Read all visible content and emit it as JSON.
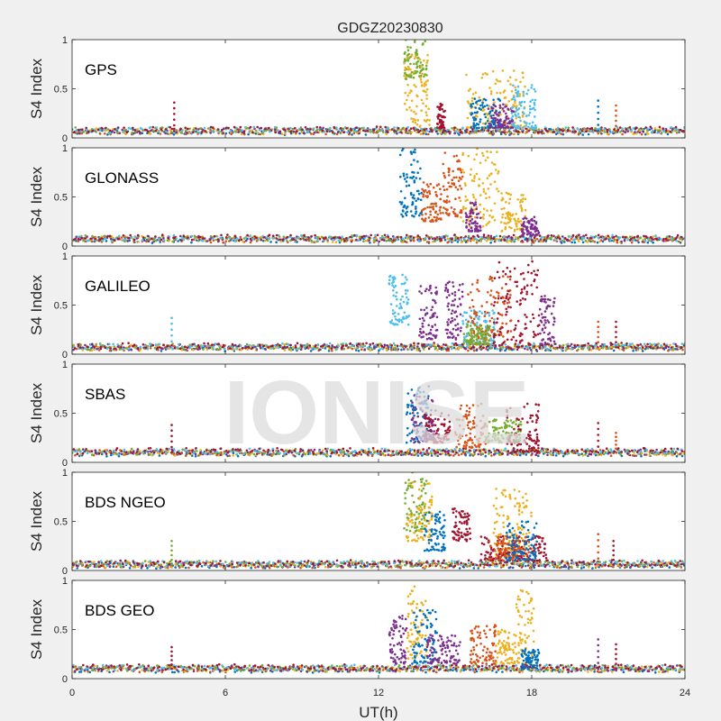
{
  "chart_data": {
    "type": "scatter",
    "title": "GDGZ20230830",
    "xlabel": "UT(h)",
    "ylabel": "S4 Index",
    "xlim": [
      0,
      24
    ],
    "ylim": [
      0,
      1
    ],
    "xticks": [
      "0",
      "6",
      "12",
      "18",
      "24"
    ],
    "yticks": [
      "0",
      "0.5",
      "1"
    ],
    "grid": false,
    "legend": "none",
    "watermark": "IONISE",
    "colors": [
      "#0072BD",
      "#D95319",
      "#EDB120",
      "#7E2F8E",
      "#77AC30",
      "#4DBEEE",
      "#A2142F"
    ],
    "panels": [
      {
        "label": "GPS",
        "baseline": 0.07,
        "spikes": [
          {
            "x": 4.0,
            "y": 0.36,
            "color": "#A2142F"
          },
          {
            "x": 20.6,
            "y": 0.38,
            "color": "#0072BD"
          },
          {
            "x": 21.3,
            "y": 0.33,
            "color": "#D95319"
          }
        ],
        "events": [
          {
            "xmin": 13.0,
            "xmax": 13.9,
            "ymin": 0.6,
            "ymax": 1.0,
            "color": "#77AC30"
          },
          {
            "xmin": 13.0,
            "xmax": 14.0,
            "ymin": 0.1,
            "ymax": 0.85,
            "color": "#EDB120"
          },
          {
            "xmin": 14.3,
            "xmax": 14.6,
            "ymin": 0.1,
            "ymax": 0.35,
            "color": "#A2142F"
          },
          {
            "xmin": 15.4,
            "xmax": 17.8,
            "ymin": 0.1,
            "ymax": 0.7,
            "color": "#EDB120"
          },
          {
            "xmin": 15.6,
            "xmax": 16.8,
            "ymin": 0.1,
            "ymax": 0.4,
            "color": "#0072BD"
          },
          {
            "xmin": 16.3,
            "xmax": 17.3,
            "ymin": 0.1,
            "ymax": 0.35,
            "color": "#7E2F8E"
          },
          {
            "xmin": 17.2,
            "xmax": 18.2,
            "ymin": 0.1,
            "ymax": 0.55,
            "color": "#4DBEEE"
          }
        ]
      },
      {
        "label": "GLONASS",
        "baseline": 0.07,
        "spikes": [],
        "events": [
          {
            "xmin": 12.8,
            "xmax": 13.7,
            "ymin": 0.3,
            "ymax": 1.0,
            "color": "#0072BD"
          },
          {
            "xmin": 13.7,
            "xmax": 14.5,
            "ymin": 0.25,
            "ymax": 0.65,
            "color": "#D95319"
          },
          {
            "xmin": 14.5,
            "xmax": 15.3,
            "ymin": 0.3,
            "ymax": 0.95,
            "color": "#D95319"
          },
          {
            "xmin": 15.2,
            "xmax": 16.7,
            "ymin": 0.2,
            "ymax": 1.0,
            "color": "#EDB120"
          },
          {
            "xmin": 15.4,
            "xmax": 16.0,
            "ymin": 0.15,
            "ymax": 0.45,
            "color": "#7E2F8E"
          },
          {
            "xmin": 16.8,
            "xmax": 17.8,
            "ymin": 0.15,
            "ymax": 0.55,
            "color": "#EDB120"
          },
          {
            "xmin": 17.6,
            "xmax": 18.3,
            "ymin": 0.1,
            "ymax": 0.3,
            "color": "#7E2F8E"
          }
        ]
      },
      {
        "label": "GALILEO",
        "baseline": 0.07,
        "spikes": [
          {
            "x": 3.9,
            "y": 0.37,
            "color": "#4DBEEE"
          },
          {
            "x": 20.6,
            "y": 0.33,
            "color": "#D95319"
          },
          {
            "x": 21.3,
            "y": 0.33,
            "color": "#A2142F"
          }
        ],
        "events": [
          {
            "xmin": 12.4,
            "xmax": 13.2,
            "ymin": 0.3,
            "ymax": 0.82,
            "color": "#4DBEEE"
          },
          {
            "xmin": 13.6,
            "xmax": 14.3,
            "ymin": 0.15,
            "ymax": 0.7,
            "color": "#7E2F8E"
          },
          {
            "xmin": 14.6,
            "xmax": 15.3,
            "ymin": 0.15,
            "ymax": 0.75,
            "color": "#7E2F8E"
          },
          {
            "xmin": 15.3,
            "xmax": 16.6,
            "ymin": 0.1,
            "ymax": 0.45,
            "color": "#4DBEEE"
          },
          {
            "xmin": 15.5,
            "xmax": 17.2,
            "ymin": 0.1,
            "ymax": 0.8,
            "color": "#D95319"
          },
          {
            "xmin": 15.3,
            "xmax": 16.4,
            "ymin": 0.1,
            "ymax": 0.3,
            "color": "#77AC30"
          },
          {
            "xmin": 16.5,
            "xmax": 18.3,
            "ymin": 0.1,
            "ymax": 0.95,
            "color": "#A2142F"
          },
          {
            "xmin": 18.3,
            "xmax": 18.9,
            "ymin": 0.1,
            "ymax": 0.6,
            "color": "#7E2F8E"
          }
        ]
      },
      {
        "label": "SBAS",
        "baseline": 0.1,
        "spikes": [
          {
            "x": 3.9,
            "y": 0.38,
            "color": "#A2142F"
          },
          {
            "x": 20.6,
            "y": 0.4,
            "color": "#A2142F"
          },
          {
            "x": 21.3,
            "y": 0.3,
            "color": "#D95319"
          }
        ],
        "events": [
          {
            "xmin": 13.1,
            "xmax": 14.0,
            "ymin": 0.2,
            "ymax": 0.8,
            "color": "#0072BD"
          },
          {
            "xmin": 13.3,
            "xmax": 14.4,
            "ymin": 0.2,
            "ymax": 0.7,
            "color": "#7E2F8E"
          },
          {
            "xmin": 13.8,
            "xmax": 14.8,
            "ymin": 0.2,
            "ymax": 0.5,
            "color": "#A2142F"
          },
          {
            "xmin": 15.0,
            "xmax": 16.2,
            "ymin": 0.15,
            "ymax": 0.6,
            "color": "#D95319"
          },
          {
            "xmin": 16.2,
            "xmax": 17.6,
            "ymin": 0.2,
            "ymax": 0.45,
            "color": "#77AC30"
          },
          {
            "xmin": 17.0,
            "xmax": 18.3,
            "ymin": 0.1,
            "ymax": 0.6,
            "color": "#A2142F"
          }
        ]
      },
      {
        "label": "BDS NGEO",
        "baseline": 0.06,
        "spikes": [
          {
            "x": 3.9,
            "y": 0.3,
            "color": "#77AC30"
          },
          {
            "x": 20.6,
            "y": 0.37,
            "color": "#D95319"
          },
          {
            "x": 21.2,
            "y": 0.3,
            "color": "#A2142F"
          }
        ],
        "events": [
          {
            "xmin": 13.0,
            "xmax": 13.9,
            "ymin": 0.4,
            "ymax": 1.0,
            "color": "#77AC30"
          },
          {
            "xmin": 13.1,
            "xmax": 14.1,
            "ymin": 0.3,
            "ymax": 0.9,
            "color": "#EDB120"
          },
          {
            "xmin": 13.8,
            "xmax": 14.6,
            "ymin": 0.2,
            "ymax": 0.6,
            "color": "#0072BD"
          },
          {
            "xmin": 14.9,
            "xmax": 15.6,
            "ymin": 0.3,
            "ymax": 0.65,
            "color": "#A2142F"
          },
          {
            "xmin": 16.5,
            "xmax": 18.0,
            "ymin": 0.15,
            "ymax": 0.85,
            "color": "#EDB120"
          },
          {
            "xmin": 16.0,
            "xmax": 18.6,
            "ymin": 0.1,
            "ymax": 0.35,
            "color": "#A2142F"
          },
          {
            "xmin": 16.3,
            "xmax": 17.9,
            "ymin": 0.1,
            "ymax": 0.35,
            "color": "#D95319"
          },
          {
            "xmin": 17.0,
            "xmax": 18.2,
            "ymin": 0.1,
            "ymax": 0.5,
            "color": "#0072BD"
          }
        ]
      },
      {
        "label": "BDS GEO",
        "baseline": 0.1,
        "spikes": [
          {
            "x": 3.9,
            "y": 0.32,
            "color": "#A2142F"
          },
          {
            "x": 20.6,
            "y": 0.4,
            "color": "#7E2F8E"
          },
          {
            "x": 21.3,
            "y": 0.35,
            "color": "#A2142F"
          }
        ],
        "events": [
          {
            "xmin": 12.4,
            "xmax": 13.1,
            "ymin": 0.15,
            "ymax": 0.65,
            "color": "#7E2F8E"
          },
          {
            "xmin": 13.1,
            "xmax": 13.9,
            "ymin": 0.2,
            "ymax": 0.95,
            "color": "#EDB120"
          },
          {
            "xmin": 13.3,
            "xmax": 14.3,
            "ymin": 0.15,
            "ymax": 0.7,
            "color": "#0072BD"
          },
          {
            "xmin": 13.9,
            "xmax": 15.2,
            "ymin": 0.15,
            "ymax": 0.45,
            "color": "#7E2F8E"
          },
          {
            "xmin": 15.6,
            "xmax": 16.6,
            "ymin": 0.15,
            "ymax": 0.55,
            "color": "#D95319"
          },
          {
            "xmin": 16.6,
            "xmax": 17.4,
            "ymin": 0.15,
            "ymax": 0.5,
            "color": "#EDB120"
          },
          {
            "xmin": 17.4,
            "xmax": 18.1,
            "ymin": 0.15,
            "ymax": 0.9,
            "color": "#EDB120"
          },
          {
            "xmin": 17.6,
            "xmax": 18.3,
            "ymin": 0.1,
            "ymax": 0.3,
            "color": "#0072BD"
          }
        ]
      }
    ]
  }
}
